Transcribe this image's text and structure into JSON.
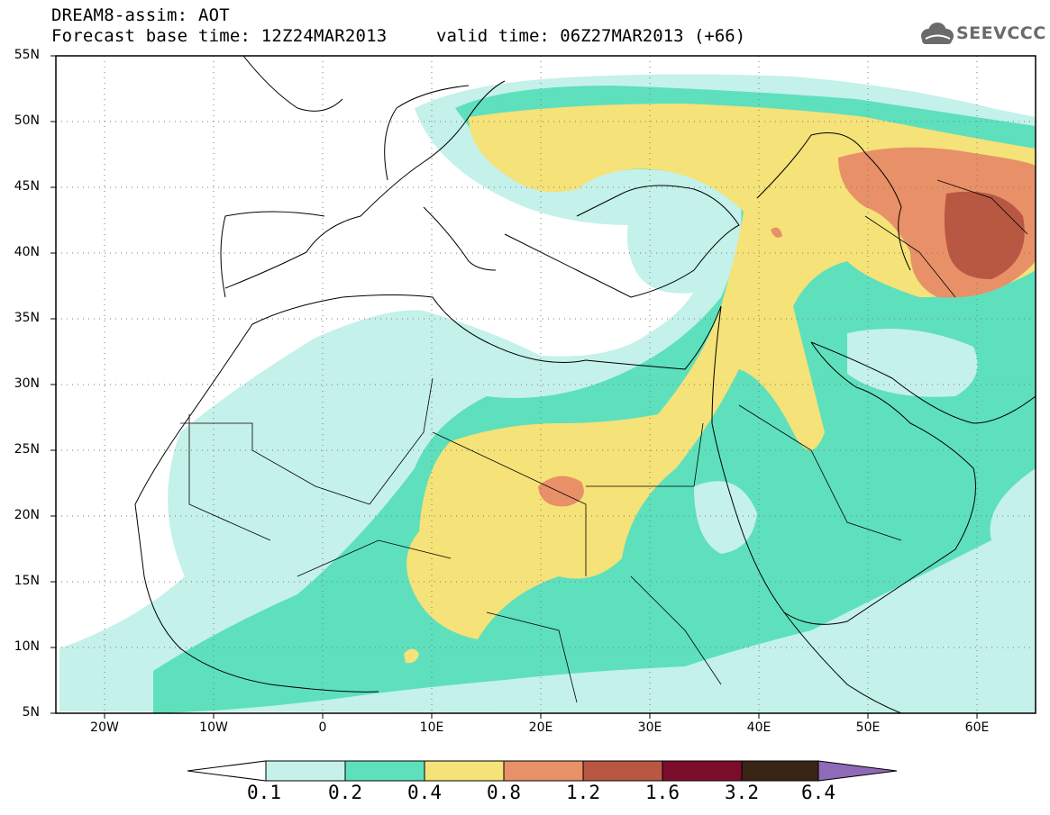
{
  "title": {
    "line1": "DREAM8-assim: AOT",
    "line2": "Forecast base time: 12Z24MAR2013",
    "valid": "valid time: 06Z27MAR2013 (+66)"
  },
  "logo": {
    "text": "SEEVCCC",
    "icon": "cloud-icon"
  },
  "map": {
    "lat_labels": [
      "55N",
      "50N",
      "45N",
      "40N",
      "35N",
      "30N",
      "25N",
      "20N",
      "15N",
      "10N",
      "5N"
    ],
    "lon_labels": [
      "20W",
      "10W",
      "0",
      "10E",
      "20E",
      "30E",
      "40E",
      "50E",
      "60E"
    ],
    "lat_range": [
      5,
      55
    ],
    "lon_range": [
      -25,
      65
    ],
    "graticule": "dotted"
  },
  "colorbar": {
    "labels": [
      "0.1",
      "0.2",
      "0.4",
      "0.8",
      "1.2",
      "1.6",
      "3.2",
      "6.4"
    ],
    "colors": {
      "c1": "#c4f1ea",
      "c2": "#5ee0bd",
      "c3": "#f5e278",
      "c4": "#e89068",
      "c5": "#b85742",
      "c6": "#7c0c2c",
      "c7": "#3a2514",
      "c8": "#8e6ab8"
    }
  }
}
